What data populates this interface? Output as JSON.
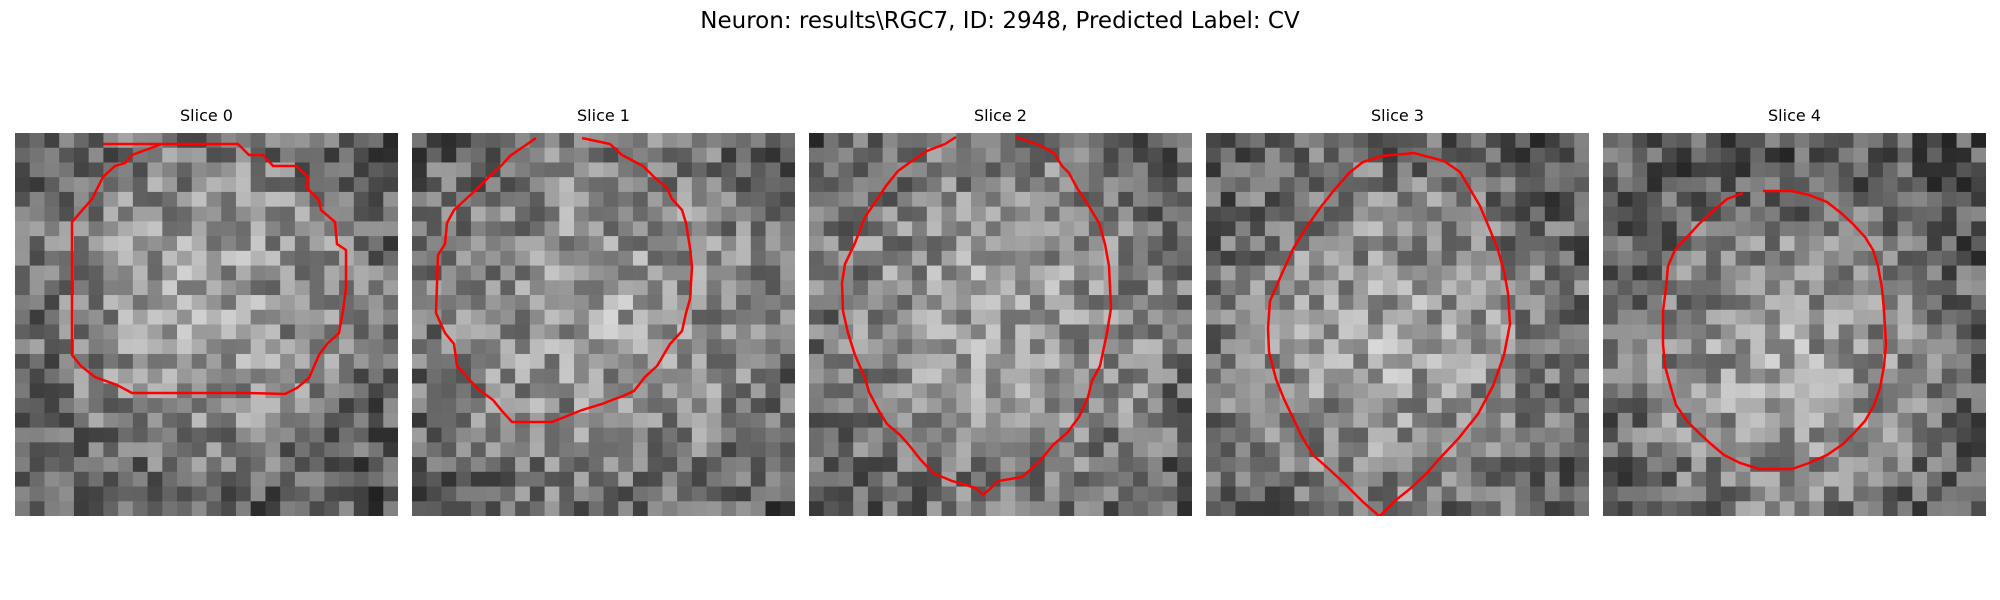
{
  "figure_title": "Neuron: results\\RGC7, ID: 2948, Predicted Label: CV",
  "panels": [
    {
      "title": "Slice 0",
      "colormap": "gray",
      "contour_color": "#ff0000",
      "contour_shape": "rounded polygon with slightly notched edges, centered, wider at top-left"
    },
    {
      "title": "Slice 1",
      "colormap": "gray",
      "contour_color": "#ff0000",
      "contour_shape": "larger polygon with a gap at the top, pointed bottom-right"
    },
    {
      "title": "Slice 2",
      "colormap": "gray",
      "contour_color": "#ff0000",
      "contour_shape": "tall polygon open at the top, small notch at the bottom center"
    },
    {
      "title": "Slice 3",
      "colormap": "gray",
      "contour_color": "#ff0000",
      "contour_shape": "wide polygon open at the bottom edge"
    },
    {
      "title": "Slice 4",
      "colormap": "gray",
      "contour_color": "#ff0000",
      "contour_shape": "compact rounded polygon in lower center"
    }
  ]
}
